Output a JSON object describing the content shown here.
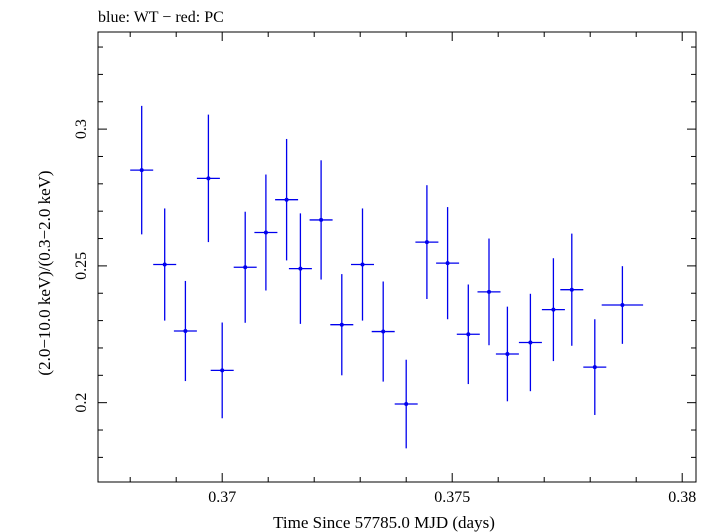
{
  "chart_data": {
    "type": "scatter",
    "title": "blue: WT − red: PC",
    "xlabel": "Time Since 57785.0 MJD (days)",
    "ylabel": "(2.0−10.0 keV)/(0.3−2.0 keV)",
    "xlim": [
      0.3673,
      0.3803
    ],
    "ylim": [
      0.171,
      0.3355
    ],
    "xticks": [
      {
        "value": 0.37,
        "label": "0.37"
      },
      {
        "value": 0.375,
        "label": "0.375"
      },
      {
        "value": 0.38,
        "label": "0.38"
      }
    ],
    "yticks": [
      {
        "value": 0.2,
        "label": "0.2"
      },
      {
        "value": 0.25,
        "label": "0.25"
      },
      {
        "value": 0.3,
        "label": "0.3"
      }
    ],
    "series": [
      {
        "color": "#0000ee",
        "points": [
          {
            "x": 0.36825,
            "xerr": 0.00025,
            "y": 0.285,
            "yerr": 0.0235
          },
          {
            "x": 0.36875,
            "xerr": 0.00025,
            "y": 0.2505,
            "yerr": 0.0205
          },
          {
            "x": 0.3692,
            "xerr": 0.00025,
            "y": 0.2262,
            "yerr": 0.0183
          },
          {
            "x": 0.3697,
            "xerr": 0.00025,
            "y": 0.282,
            "yerr": 0.0233
          },
          {
            "x": 0.37,
            "xerr": 0.00025,
            "y": 0.2118,
            "yerr": 0.0175
          },
          {
            "x": 0.3705,
            "xerr": 0.00025,
            "y": 0.2495,
            "yerr": 0.0203
          },
          {
            "x": 0.37095,
            "xerr": 0.00025,
            "y": 0.2622,
            "yerr": 0.0212
          },
          {
            "x": 0.3714,
            "xerr": 0.00025,
            "y": 0.2742,
            "yerr": 0.0222
          },
          {
            "x": 0.3717,
            "xerr": 0.00025,
            "y": 0.249,
            "yerr": 0.0202
          },
          {
            "x": 0.37215,
            "xerr": 0.00025,
            "y": 0.2668,
            "yerr": 0.0218
          },
          {
            "x": 0.3726,
            "xerr": 0.00025,
            "y": 0.2285,
            "yerr": 0.0185
          },
          {
            "x": 0.37305,
            "xerr": 0.00025,
            "y": 0.2505,
            "yerr": 0.0205
          },
          {
            "x": 0.3735,
            "xerr": 0.00025,
            "y": 0.226,
            "yerr": 0.0183
          },
          {
            "x": 0.374,
            "xerr": 0.00025,
            "y": 0.1995,
            "yerr": 0.0162
          },
          {
            "x": 0.37445,
            "xerr": 0.00025,
            "y": 0.2587,
            "yerr": 0.0208
          },
          {
            "x": 0.3749,
            "xerr": 0.00025,
            "y": 0.251,
            "yerr": 0.0205
          },
          {
            "x": 0.37535,
            "xerr": 0.00025,
            "y": 0.225,
            "yerr": 0.0182
          },
          {
            "x": 0.3758,
            "xerr": 0.00025,
            "y": 0.2405,
            "yerr": 0.0195
          },
          {
            "x": 0.3762,
            "xerr": 0.00025,
            "y": 0.2178,
            "yerr": 0.0173
          },
          {
            "x": 0.3767,
            "xerr": 0.00025,
            "y": 0.222,
            "yerr": 0.0178
          },
          {
            "x": 0.3772,
            "xerr": 0.00025,
            "y": 0.234,
            "yerr": 0.0188
          },
          {
            "x": 0.3776,
            "xerr": 0.00025,
            "y": 0.2413,
            "yerr": 0.0205
          },
          {
            "x": 0.3781,
            "xerr": 0.00025,
            "y": 0.213,
            "yerr": 0.0175
          },
          {
            "x": 0.3787,
            "xerr": 0.00045,
            "y": 0.2357,
            "yerr": 0.0142
          }
        ]
      }
    ]
  }
}
